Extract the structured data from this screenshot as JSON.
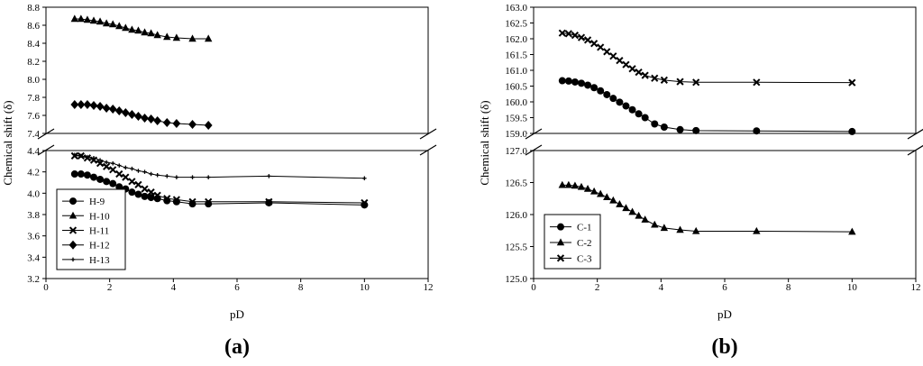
{
  "chart_data": [
    {
      "type": "line",
      "panel_label": "(a)",
      "xlabel": "pD",
      "ylabel": "Chemical shift (δ)",
      "xlim": [
        0,
        12
      ],
      "xticks": [
        "0",
        "2",
        "4",
        "6",
        "8",
        "10",
        "12"
      ],
      "broken_y_axis": true,
      "y_segments": [
        {
          "range": [
            7.4,
            8.8
          ],
          "ticks": [
            "7.4",
            "7.6",
            "7.8",
            "8.0",
            "8.2",
            "8.4",
            "8.6",
            "8.8"
          ]
        },
        {
          "range": [
            3.2,
            4.4
          ],
          "ticks": [
            "3.2",
            "3.4",
            "3.6",
            "3.8",
            "4.0",
            "4.2",
            "4.4"
          ]
        }
      ],
      "legend_position": "lower-left",
      "series": [
        {
          "name": "H-9",
          "marker": "circle",
          "segment": 1,
          "x": [
            0.9,
            1.1,
            1.3,
            1.5,
            1.7,
            1.9,
            2.1,
            2.3,
            2.5,
            2.7,
            2.9,
            3.1,
            3.3,
            3.5,
            3.8,
            4.1,
            4.6,
            5.1,
            7.0,
            10.0
          ],
          "y": [
            4.18,
            4.18,
            4.17,
            4.15,
            4.13,
            4.11,
            4.09,
            4.06,
            4.04,
            4.01,
            3.99,
            3.97,
            3.96,
            3.95,
            3.93,
            3.92,
            3.9,
            3.9,
            3.91,
            3.89
          ]
        },
        {
          "name": "H-10",
          "marker": "triangle",
          "segment": 0,
          "x": [
            0.9,
            1.1,
            1.3,
            1.5,
            1.7,
            1.9,
            2.1,
            2.3,
            2.5,
            2.7,
            2.9,
            3.1,
            3.3,
            3.5,
            3.8,
            4.1,
            4.6,
            5.1
          ],
          "y": [
            8.67,
            8.67,
            8.66,
            8.65,
            8.64,
            8.62,
            8.61,
            8.59,
            8.57,
            8.55,
            8.54,
            8.52,
            8.51,
            8.49,
            8.47,
            8.46,
            8.45,
            8.45
          ]
        },
        {
          "name": "H-11",
          "marker": "cross",
          "segment": 1,
          "x": [
            0.9,
            1.1,
            1.3,
            1.5,
            1.7,
            1.9,
            2.1,
            2.3,
            2.5,
            2.7,
            2.9,
            3.1,
            3.3,
            3.5,
            3.8,
            4.1,
            4.6,
            5.1,
            7.0,
            10.0
          ],
          "y": [
            4.35,
            4.35,
            4.33,
            4.31,
            4.28,
            4.25,
            4.22,
            4.18,
            4.15,
            4.11,
            4.08,
            4.04,
            4.01,
            3.98,
            3.95,
            3.94,
            3.92,
            3.92,
            3.92,
            3.91
          ]
        },
        {
          "name": "H-12",
          "marker": "diamond",
          "segment": 0,
          "x": [
            0.9,
            1.1,
            1.3,
            1.5,
            1.7,
            1.9,
            2.1,
            2.3,
            2.5,
            2.7,
            2.9,
            3.1,
            3.3,
            3.5,
            3.8,
            4.1,
            4.6,
            5.1
          ],
          "y": [
            7.72,
            7.72,
            7.72,
            7.71,
            7.7,
            7.68,
            7.67,
            7.65,
            7.63,
            7.61,
            7.59,
            7.57,
            7.56,
            7.54,
            7.52,
            7.51,
            7.5,
            7.49
          ]
        },
        {
          "name": "H-13",
          "marker": "plus",
          "segment": 1,
          "x": [
            0.9,
            1.1,
            1.3,
            1.5,
            1.7,
            1.9,
            2.1,
            2.3,
            2.5,
            2.7,
            2.9,
            3.1,
            3.3,
            3.5,
            3.8,
            4.1,
            4.6,
            5.1,
            7.0,
            10.0
          ],
          "y": [
            4.36,
            4.35,
            4.34,
            4.33,
            4.31,
            4.29,
            4.28,
            4.26,
            4.24,
            4.23,
            4.21,
            4.2,
            4.18,
            4.17,
            4.16,
            4.15,
            4.15,
            4.15,
            4.16,
            4.14
          ]
        }
      ]
    },
    {
      "type": "line",
      "panel_label": "(b)",
      "xlabel": "pD",
      "ylabel": "Chemical shift (δ)",
      "xlim": [
        0,
        12
      ],
      "xticks": [
        "0",
        "2",
        "4",
        "6",
        "8",
        "10",
        "12"
      ],
      "broken_y_axis": true,
      "y_segments": [
        {
          "range": [
            159.0,
            163.0
          ],
          "ticks": [
            "159.0",
            "159.5",
            "160.0",
            "160.5",
            "161.0",
            "161.5",
            "162.0",
            "162.5",
            "163.0"
          ]
        },
        {
          "range": [
            125.0,
            127.0
          ],
          "ticks": [
            "125.0",
            "125.5",
            "126.0",
            "126.5",
            "127.0"
          ]
        }
      ],
      "legend_position": "lower-left",
      "series": [
        {
          "name": "C-1",
          "marker": "circle",
          "segment": 0,
          "x": [
            0.9,
            1.1,
            1.3,
            1.5,
            1.7,
            1.9,
            2.1,
            2.3,
            2.5,
            2.7,
            2.9,
            3.1,
            3.3,
            3.5,
            3.8,
            4.1,
            4.6,
            5.1,
            7.0,
            10.0
          ],
          "y": [
            160.67,
            160.66,
            160.63,
            160.59,
            160.53,
            160.45,
            160.35,
            160.23,
            160.11,
            159.99,
            159.87,
            159.75,
            159.62,
            159.5,
            159.3,
            159.2,
            159.12,
            159.09,
            159.08,
            159.06
          ]
        },
        {
          "name": "C-2",
          "marker": "triangle",
          "segment": 1,
          "x": [
            0.9,
            1.1,
            1.3,
            1.5,
            1.7,
            1.9,
            2.1,
            2.3,
            2.5,
            2.7,
            2.9,
            3.1,
            3.3,
            3.5,
            3.8,
            4.1,
            4.6,
            5.1,
            7.0,
            10.0
          ],
          "y": [
            126.46,
            126.46,
            126.45,
            126.43,
            126.4,
            126.36,
            126.32,
            126.27,
            126.22,
            126.16,
            126.1,
            126.04,
            125.98,
            125.92,
            125.84,
            125.79,
            125.76,
            125.74,
            125.74,
            125.73
          ]
        },
        {
          "name": "C-3",
          "marker": "cross",
          "segment": 0,
          "x": [
            0.9,
            1.1,
            1.3,
            1.5,
            1.7,
            1.9,
            2.1,
            2.3,
            2.5,
            2.7,
            2.9,
            3.1,
            3.3,
            3.5,
            3.8,
            4.1,
            4.6,
            5.1,
            7.0,
            10.0
          ],
          "y": [
            162.18,
            162.16,
            162.11,
            162.04,
            161.96,
            161.85,
            161.73,
            161.59,
            161.45,
            161.31,
            161.18,
            161.05,
            160.94,
            160.84,
            160.75,
            160.69,
            160.64,
            160.62,
            160.62,
            160.61
          ]
        }
      ]
    }
  ]
}
